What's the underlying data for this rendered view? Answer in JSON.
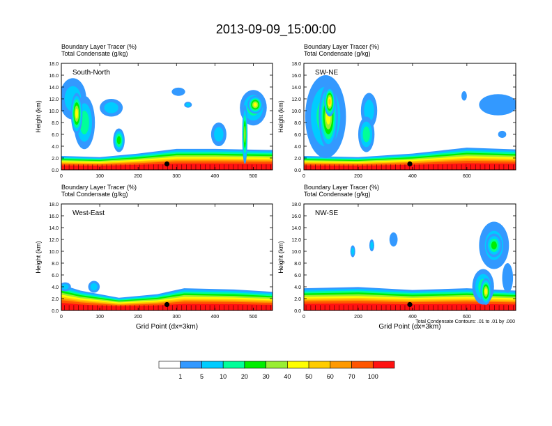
{
  "page": {
    "title": "2013-09-09_15:00:00"
  },
  "figure": {
    "ylabel": "Height (km)",
    "xlabel": "Grid Point (dx=3km)",
    "footnote": "Total Condensate Contours: .01 to .01 by .000",
    "header_line1": "Boundary Layer Tracer   (%)",
    "header_line2": "Total Condensate   (g/kg)"
  },
  "colorbar": {
    "levels": [
      "1",
      "5",
      "10",
      "20",
      "30",
      "40",
      "50",
      "60",
      "70",
      "100"
    ],
    "colors": [
      "#ffffff",
      "#3399ff",
      "#00ccff",
      "#00ff99",
      "#00ee00",
      "#99ee33",
      "#ffff00",
      "#ffcc00",
      "#ff9900",
      "#ff5500",
      "#ff1111"
    ]
  },
  "chart_data": [
    {
      "type": "heatmap",
      "panel_label": "South-North",
      "title": "Boundary Layer Tracer (%) / Total Condensate (g/kg)",
      "xlabel": "",
      "ylabel": "Height (km)",
      "xlim": [
        0,
        550
      ],
      "ylim": [
        0,
        18
      ],
      "xticks": [
        "0",
        "100",
        "200",
        "300",
        "400",
        "500"
      ],
      "yticks": [
        "0.0",
        "2.0",
        "4.0",
        "6.0",
        "8.0",
        "10.0",
        "12.0",
        "14.0",
        "16.0",
        "18.0"
      ],
      "marker": {
        "x": 275,
        "y": 1.0
      },
      "bl_top": [
        {
          "x": 0,
          "y": 2.2
        },
        {
          "x": 100,
          "y": 2.0
        },
        {
          "x": 200,
          "y": 2.6
        },
        {
          "x": 300,
          "y": 3.4
        },
        {
          "x": 400,
          "y": 3.4
        },
        {
          "x": 550,
          "y": 3.2
        }
      ],
      "blobs": [
        {
          "x": 30,
          "y": 12.0,
          "w": 70,
          "h": 7.0,
          "level": 2
        },
        {
          "x": 60,
          "y": 8.0,
          "w": 55,
          "h": 9.0,
          "level": 3
        },
        {
          "x": 40,
          "y": 9.5,
          "w": 30,
          "h": 7.0,
          "level": 6
        },
        {
          "x": 130,
          "y": 10.5,
          "w": 60,
          "h": 3.0,
          "level": 2
        },
        {
          "x": 150,
          "y": 5.0,
          "w": 30,
          "h": 4.0,
          "level": 4
        },
        {
          "x": 305,
          "y": 13.2,
          "w": 35,
          "h": 1.4,
          "level": 1
        },
        {
          "x": 330,
          "y": 11.0,
          "w": 20,
          "h": 1.0,
          "level": 2
        },
        {
          "x": 410,
          "y": 6.0,
          "w": 40,
          "h": 4.0,
          "level": 2
        },
        {
          "x": 500,
          "y": 10.5,
          "w": 70,
          "h": 6.0,
          "level": 3
        },
        {
          "x": 505,
          "y": 11.0,
          "w": 40,
          "h": 3.0,
          "level": 6
        },
        {
          "x": 478,
          "y": 6.0,
          "w": 14,
          "h": 10.0,
          "level": 5
        }
      ]
    },
    {
      "type": "heatmap",
      "panel_label": "SW-NE",
      "title": "Boundary Layer Tracer (%) / Total Condensate (g/kg)",
      "xlabel": "",
      "ylabel": "Height (km)",
      "xlim": [
        0,
        780
      ],
      "ylim": [
        0,
        18
      ],
      "xticks": [
        "0",
        "200",
        "400",
        "600"
      ],
      "yticks": [
        "0.0",
        "2.0",
        "4.0",
        "6.0",
        "8.0",
        "10.0",
        "12.0",
        "14.0",
        "16.0",
        "18.0"
      ],
      "marker": {
        "x": 390,
        "y": 1.0
      },
      "bl_top": [
        {
          "x": 0,
          "y": 2.2
        },
        {
          "x": 200,
          "y": 2.0
        },
        {
          "x": 400,
          "y": 2.6
        },
        {
          "x": 600,
          "y": 3.6
        },
        {
          "x": 780,
          "y": 3.3
        }
      ],
      "blobs": [
        {
          "x": 80,
          "y": 9.0,
          "w": 150,
          "h": 14.0,
          "level": 3
        },
        {
          "x": 90,
          "y": 9.0,
          "w": 70,
          "h": 11.0,
          "level": 6
        },
        {
          "x": 95,
          "y": 11.5,
          "w": 40,
          "h": 5.0,
          "level": 7
        },
        {
          "x": 240,
          "y": 10.0,
          "w": 60,
          "h": 6.0,
          "level": 2
        },
        {
          "x": 230,
          "y": 6.0,
          "w": 60,
          "h": 6.0,
          "level": 3
        },
        {
          "x": 715,
          "y": 11.0,
          "w": 140,
          "h": 3.6,
          "level": 1
        },
        {
          "x": 590,
          "y": 12.5,
          "w": 20,
          "h": 1.6,
          "level": 1
        },
        {
          "x": 730,
          "y": 6.0,
          "w": 30,
          "h": 1.2,
          "level": 1
        }
      ]
    },
    {
      "type": "heatmap",
      "panel_label": "West-East",
      "title": "Boundary Layer Tracer (%) / Total Condensate (g/kg)",
      "xlabel": "Grid Point (dx=3km)",
      "ylabel": "Height (km)",
      "xlim": [
        0,
        550
      ],
      "ylim": [
        0,
        18
      ],
      "xticks": [
        "0",
        "100",
        "200",
        "300",
        "400",
        "500"
      ],
      "yticks": [
        "0.0",
        "2.0",
        "4.0",
        "6.0",
        "8.0",
        "10.0",
        "12.0",
        "14.0",
        "16.0",
        "18.0"
      ],
      "marker": {
        "x": 275,
        "y": 1.0
      },
      "bl_top": [
        {
          "x": 0,
          "y": 4.2
        },
        {
          "x": 50,
          "y": 3.2
        },
        {
          "x": 150,
          "y": 2.0
        },
        {
          "x": 250,
          "y": 2.6
        },
        {
          "x": 320,
          "y": 3.6
        },
        {
          "x": 450,
          "y": 3.4
        },
        {
          "x": 550,
          "y": 3.0
        }
      ],
      "blobs": [
        {
          "x": 85,
          "y": 4.0,
          "w": 30,
          "h": 2.0,
          "level": 2
        },
        {
          "x": 10,
          "y": 4.0,
          "w": 30,
          "h": 1.5,
          "level": 2
        }
      ]
    },
    {
      "type": "heatmap",
      "panel_label": "NW-SE",
      "title": "Boundary Layer Tracer (%) / Total Condensate (g/kg)",
      "xlabel": "Grid Point (dx=3km)",
      "ylabel": "Height (km)",
      "xlim": [
        0,
        780
      ],
      "ylim": [
        0,
        18
      ],
      "xticks": [
        "0",
        "200",
        "400",
        "600"
      ],
      "yticks": [
        "0.0",
        "2.0",
        "4.0",
        "6.0",
        "8.0",
        "10.0",
        "12.0",
        "14.0",
        "16.0",
        "18.0"
      ],
      "marker": {
        "x": 390,
        "y": 1.0
      },
      "bl_top": [
        {
          "x": 0,
          "y": 3.6
        },
        {
          "x": 200,
          "y": 3.8
        },
        {
          "x": 400,
          "y": 3.3
        },
        {
          "x": 600,
          "y": 3.6
        },
        {
          "x": 780,
          "y": 3.2
        }
      ],
      "blobs": [
        {
          "x": 180,
          "y": 10.0,
          "w": 18,
          "h": 2.0,
          "level": 2
        },
        {
          "x": 250,
          "y": 11.0,
          "w": 18,
          "h": 2.0,
          "level": 2
        },
        {
          "x": 330,
          "y": 12.0,
          "w": 30,
          "h": 2.4,
          "level": 1
        },
        {
          "x": 700,
          "y": 11.0,
          "w": 110,
          "h": 8.0,
          "level": 2
        },
        {
          "x": 700,
          "y": 11.0,
          "w": 60,
          "h": 4.0,
          "level": 4
        },
        {
          "x": 660,
          "y": 4.0,
          "w": 80,
          "h": 6.0,
          "level": 3
        },
        {
          "x": 670,
          "y": 3.2,
          "w": 40,
          "h": 4.5,
          "level": 6
        },
        {
          "x": 750,
          "y": 5.5,
          "w": 40,
          "h": 5.0,
          "level": 1
        }
      ]
    }
  ]
}
